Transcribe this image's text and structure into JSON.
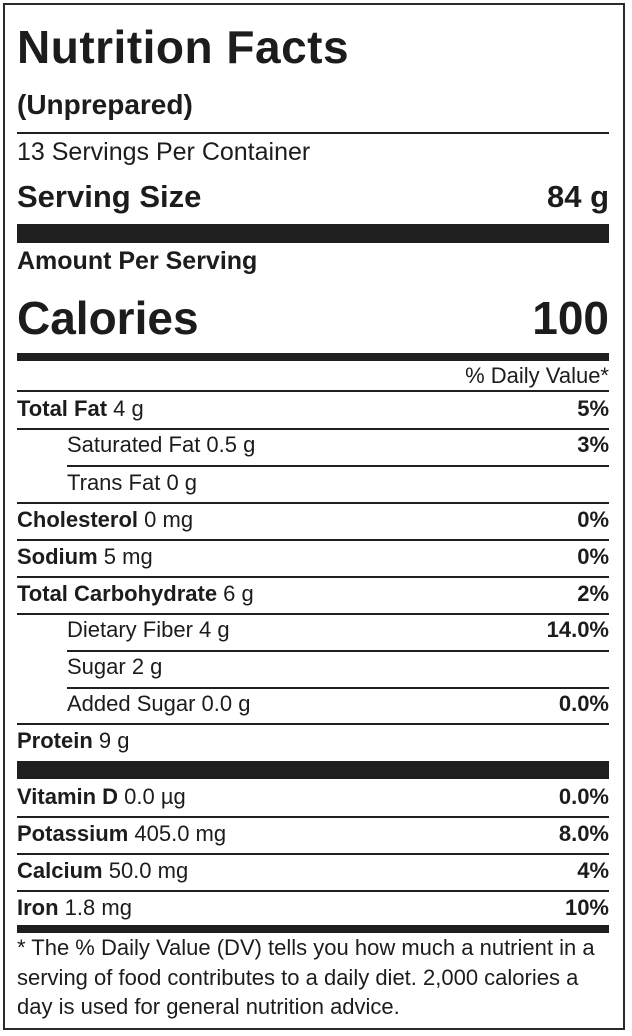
{
  "label": {
    "title": "Nutrition Facts",
    "subtitle": "(Unprepared)",
    "servings_per_container": "13 Servings Per Container",
    "serving_size_label": "Serving Size",
    "serving_size_value": "84 g",
    "amount_per_serving": "Amount Per Serving",
    "calories_label": "Calories",
    "calories_value": "100",
    "daily_value_header": "% Daily Value*",
    "nutrients": [
      {
        "name": "Total Fat",
        "amount": " 4 g",
        "dv": "5%"
      },
      {
        "name": "Saturated Fat",
        "amount": " 0.5 g",
        "dv": "3%"
      },
      {
        "name": "Trans Fat",
        "amount": " 0 g",
        "dv": ""
      },
      {
        "name": "Cholesterol",
        "amount": " 0 mg",
        "dv": "0%"
      },
      {
        "name": "Sodium",
        "amount": " 5 mg",
        "dv": "0%"
      },
      {
        "name": "Total Carbohydrate",
        "amount": " 6 g",
        "dv": "2%"
      },
      {
        "name": "Dietary Fiber",
        "amount": " 4 g",
        "dv": "14.0%"
      },
      {
        "name": "Sugar",
        "amount": " 2 g",
        "dv": ""
      },
      {
        "name": "Added Sugar",
        "amount": " 0.0 g",
        "dv": "0.0%"
      },
      {
        "name": "Protein",
        "amount": " 9 g",
        "dv": ""
      }
    ],
    "micronutrients": [
      {
        "name": "Vitamin D",
        "amount": " 0.0 µg",
        "dv": "0.0%"
      },
      {
        "name": "Potassium",
        "amount": " 405.0 mg",
        "dv": "8.0%"
      },
      {
        "name": "Calcium",
        "amount": " 50.0 mg",
        "dv": "4%"
      },
      {
        "name": "Iron",
        "amount": " 1.8 mg",
        "dv": "10%"
      }
    ],
    "footnote": "* The % Daily Value (DV) tells you how much a nutrient in a serving of food contributes to a daily diet. 2,000 calories a day is used for general nutrition advice."
  }
}
